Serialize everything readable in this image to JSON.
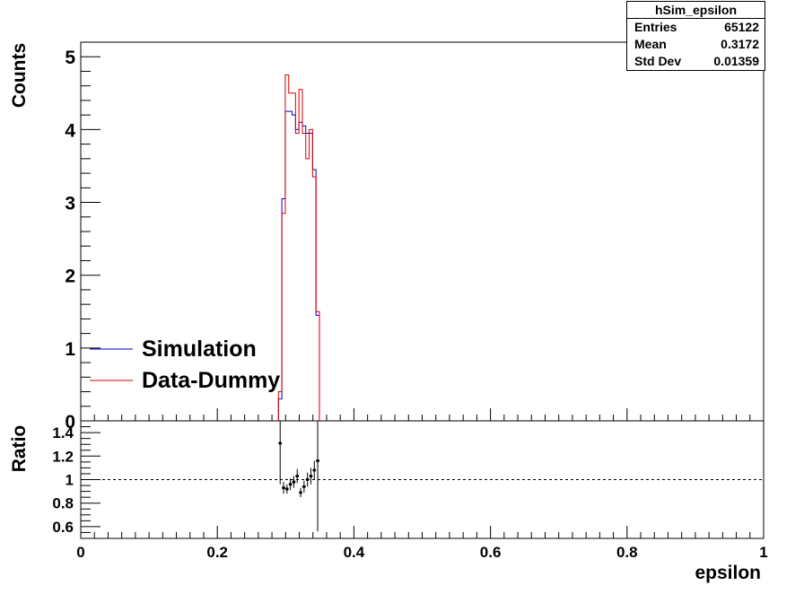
{
  "chart_data": [
    {
      "type": "line",
      "ylabel": "Counts",
      "xlim": [
        0,
        1
      ],
      "ylim": [
        0,
        5.2
      ],
      "y_ticks": [
        0,
        1,
        2,
        3,
        4,
        5
      ],
      "legend": {
        "position": "left",
        "entries": [
          "Simulation",
          "Data-Dummy"
        ]
      },
      "x": [
        0.292,
        0.297,
        0.302,
        0.307,
        0.312,
        0.317,
        0.322,
        0.327,
        0.332,
        0.337,
        0.342,
        0.347
      ],
      "series": [
        {
          "name": "Simulation",
          "color": "#0000cc",
          "values": [
            0.3,
            3.05,
            4.25,
            4.25,
            4.2,
            4.0,
            4.1,
            4.05,
            3.95,
            3.95,
            3.45,
            1.45
          ]
        },
        {
          "name": "Data-Dummy",
          "color": "#dd0000",
          "values": [
            0.4,
            2.85,
            4.75,
            4.5,
            4.5,
            3.95,
            4.55,
            3.95,
            3.6,
            4.0,
            3.35,
            1.5
          ]
        }
      ]
    },
    {
      "type": "scatter",
      "xlabel": "epsilon",
      "ylabel": "Ratio",
      "xlim": [
        0,
        1
      ],
      "ylim": [
        0.5,
        1.5
      ],
      "x_ticks": [
        0,
        0.2,
        0.4,
        0.6,
        0.8,
        1
      ],
      "y_ticks": [
        0.6,
        0.8,
        1,
        1.2,
        1.4
      ],
      "reference_line": 1,
      "x": [
        0.292,
        0.297,
        0.302,
        0.307,
        0.312,
        0.317,
        0.322,
        0.327,
        0.332,
        0.337,
        0.342,
        0.347
      ],
      "series": [
        {
          "name": "Ratio",
          "values": [
            1.31,
            0.93,
            0.92,
            0.96,
            0.98,
            1.03,
            0.89,
            0.94,
            1.0,
            1.03,
            1.08,
            1.16
          ],
          "errors": [
            0.35,
            0.05,
            0.04,
            0.05,
            0.05,
            0.06,
            0.04,
            0.05,
            0.06,
            0.07,
            0.08,
            0.6
          ]
        }
      ]
    }
  ],
  "stats_box": {
    "title": "hSim_epsilon",
    "rows": [
      {
        "label": "Entries",
        "value": "65122"
      },
      {
        "label": "Mean",
        "value": "0.3172"
      },
      {
        "label": "Std Dev",
        "value": "0.01359"
      }
    ]
  },
  "colors": {
    "axis": "#000000",
    "simulation": "#0000cc",
    "data": "#dd0000",
    "ratio": "#000000"
  }
}
